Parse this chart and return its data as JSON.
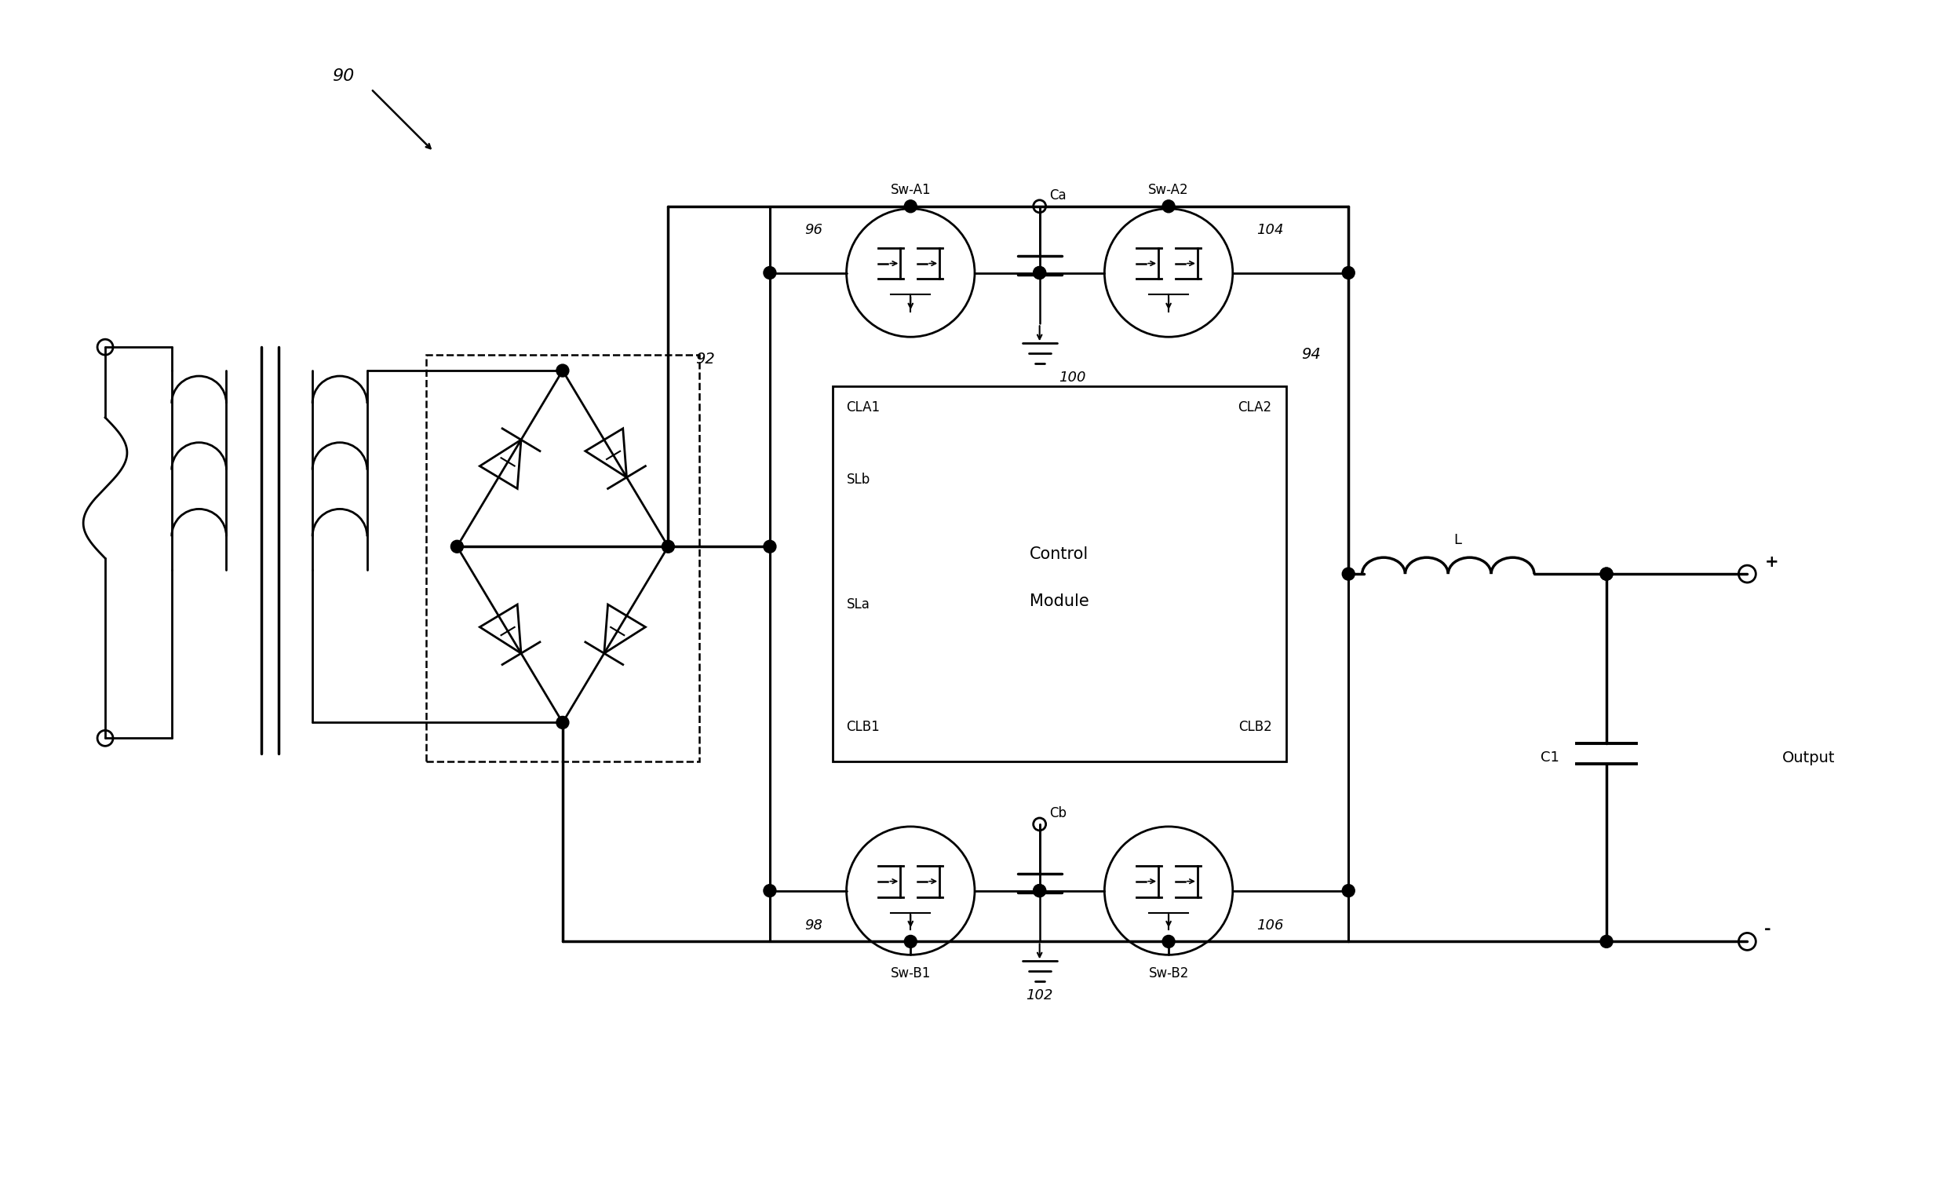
{
  "bg_color": "#ffffff",
  "line_color": "#000000",
  "fig_label": "90",
  "bridge_label": "92",
  "control_label": "94",
  "sw_a1_label": "96",
  "sw_b1_label": "98",
  "ca_label": "100",
  "cb_label": "102",
  "sw_a2_label": "104",
  "sw_b2_label": "106",
  "sw_a1_text": "Sw-A1",
  "sw_a2_text": "Sw-A2",
  "sw_b1_text": "Sw-B1",
  "sw_b2_text": "Sw-B2",
  "ca_text": "Ca",
  "cb_text": "Cb",
  "cla1_text": "CLA1",
  "cla2_text": "CLA2",
  "slb_text": "SLb",
  "sla_text": "SLa",
  "clb1_text": "CLB1",
  "clb2_text": "CLB2",
  "cm_text1": "Control",
  "cm_text2": "Module",
  "l_text": "L",
  "c1_text": "C1",
  "output_text": "Output"
}
